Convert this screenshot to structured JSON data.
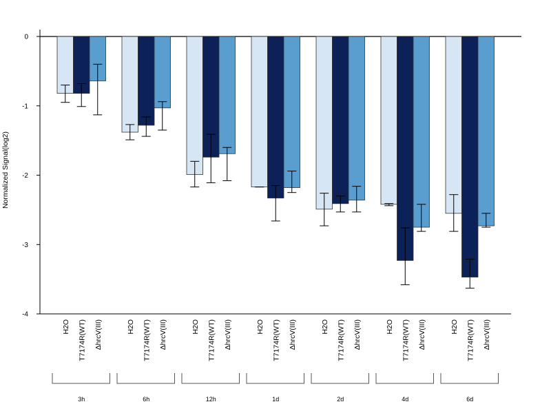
{
  "chart_data": {
    "type": "bar",
    "ylabel": "Normalized Signal(log2)",
    "xlabel": "",
    "title": "",
    "ylim": [
      -4,
      0
    ],
    "yticks": [
      0,
      -1,
      -2,
      -3,
      -4
    ],
    "series_labels": [
      "H2O",
      "T7174R(WT)",
      "ΔhrcV(III)"
    ],
    "colors": [
      "#d6e6f5",
      "#0b2157",
      "#5a9ecf"
    ],
    "groups": [
      {
        "label": "3h",
        "values": [
          -0.82,
          -0.82,
          -0.64
        ],
        "err_low": [
          -0.95,
          -1.01,
          -1.13
        ],
        "err_high": [
          -0.7,
          -0.68,
          -0.4
        ]
      },
      {
        "label": "6h",
        "values": [
          -1.38,
          -1.28,
          -1.03
        ],
        "err_low": [
          -1.49,
          -1.44,
          -1.35
        ],
        "err_high": [
          -1.27,
          -1.16,
          -0.94
        ]
      },
      {
        "label": "12h",
        "values": [
          -1.99,
          -1.74,
          -1.69
        ],
        "err_low": [
          -2.17,
          -2.11,
          -2.08
        ],
        "err_high": [
          -1.8,
          -1.41,
          -1.6
        ]
      },
      {
        "label": "1d",
        "values": [
          -2.17,
          -2.33,
          -2.18
        ],
        "err_low": [
          -2.17,
          -2.66,
          -2.25
        ],
        "err_high": [
          -2.17,
          -2.15,
          -1.94
        ]
      },
      {
        "label": "2d",
        "values": [
          -2.49,
          -2.41,
          -2.36
        ],
        "err_low": [
          -2.73,
          -2.53,
          -2.53
        ],
        "err_high": [
          -2.26,
          -2.3,
          -2.16
        ]
      },
      {
        "label": "4d",
        "values": [
          -2.42,
          -3.23,
          -2.75
        ],
        "err_low": [
          -2.44,
          -3.58,
          -2.81
        ],
        "err_high": [
          -2.41,
          -2.76,
          -2.42
        ]
      },
      {
        "label": "6d",
        "values": [
          -2.55,
          -3.47,
          -2.73
        ],
        "err_low": [
          -2.81,
          -3.63,
          -2.75
        ],
        "err_high": [
          -2.28,
          -3.21,
          -2.55
        ]
      }
    ]
  }
}
